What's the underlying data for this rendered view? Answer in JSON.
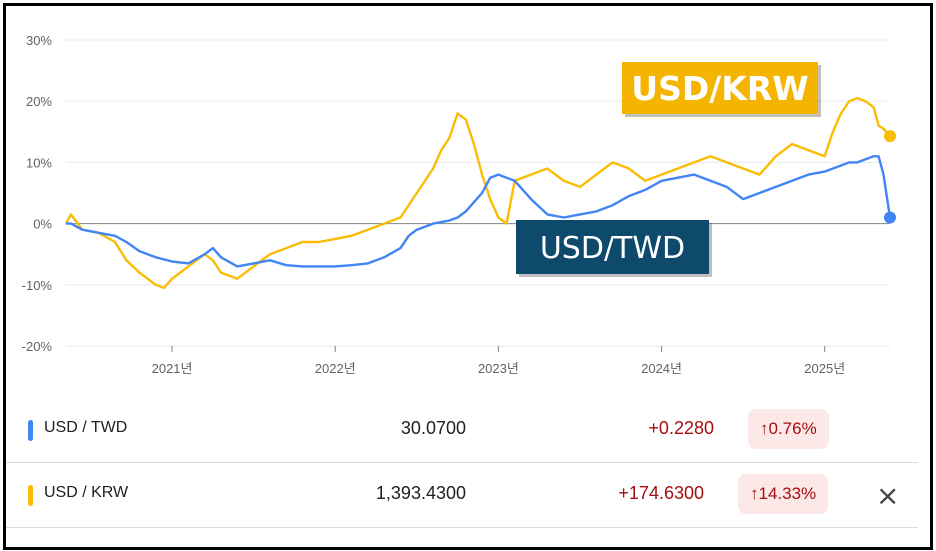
{
  "chart_data": {
    "type": "line",
    "y_ticks": [
      "30%",
      "20%",
      "10%",
      "0%",
      "-10%",
      "-20%"
    ],
    "ylim": [
      -20,
      30
    ],
    "x_ticks": [
      "2021년",
      "2022년",
      "2023년",
      "2024년",
      "2025년"
    ],
    "x_tick_years": [
      2021,
      2022,
      2023,
      2024,
      2025
    ],
    "xlim": [
      2020.35,
      2025.4
    ],
    "zero_line": true,
    "series": [
      {
        "name": "USD/TWD",
        "color": "#4285f4",
        "x": [
          2020.35,
          2020.38,
          2020.45,
          2020.55,
          2020.65,
          2020.72,
          2020.8,
          2020.9,
          2021.0,
          2021.1,
          2021.2,
          2021.25,
          2021.3,
          2021.4,
          2021.5,
          2021.6,
          2021.7,
          2021.8,
          2021.9,
          2022.0,
          2022.1,
          2022.2,
          2022.3,
          2022.4,
          2022.45,
          2022.5,
          2022.55,
          2022.6,
          2022.7,
          2022.75,
          2022.8,
          2022.85,
          2022.9,
          2022.95,
          2023.0,
          2023.05,
          2023.1,
          2023.2,
          2023.3,
          2023.4,
          2023.5,
          2023.6,
          2023.7,
          2023.8,
          2023.9,
          2024.0,
          2024.1,
          2024.2,
          2024.3,
          2024.4,
          2024.5,
          2024.6,
          2024.7,
          2024.8,
          2024.9,
          2025.0,
          2025.05,
          2025.1,
          2025.15,
          2025.2,
          2025.25,
          2025.3,
          2025.33,
          2025.36,
          2025.4
        ],
        "y": [
          0,
          0,
          -1,
          -1.5,
          -2,
          -3,
          -4.5,
          -5.5,
          -6.2,
          -6.5,
          -5,
          -4,
          -5.5,
          -7,
          -6.5,
          -6,
          -6.8,
          -7,
          -7,
          -7,
          -6.8,
          -6.5,
          -5.5,
          -4,
          -2,
          -1,
          -0.5,
          0,
          0.5,
          1,
          2,
          3.5,
          5,
          7.5,
          8,
          7.5,
          7,
          4,
          1.5,
          1,
          1.5,
          2,
          3,
          4.5,
          5.5,
          7,
          7.5,
          8,
          7,
          6,
          4,
          5,
          6,
          7,
          8,
          8.5,
          9,
          9.5,
          10,
          10,
          10.5,
          11,
          11,
          8,
          1
        ]
      },
      {
        "name": "USD/KRW",
        "color": "#fbbc04",
        "x": [
          2020.35,
          2020.38,
          2020.45,
          2020.55,
          2020.65,
          2020.72,
          2020.8,
          2020.85,
          2020.9,
          2020.95,
          2021.0,
          2021.1,
          2021.2,
          2021.25,
          2021.3,
          2021.4,
          2021.5,
          2021.6,
          2021.7,
          2021.8,
          2021.9,
          2022.0,
          2022.1,
          2022.2,
          2022.3,
          2022.4,
          2022.45,
          2022.5,
          2022.55,
          2022.6,
          2022.65,
          2022.7,
          2022.75,
          2022.8,
          2022.85,
          2022.9,
          2022.95,
          2023.0,
          2023.05,
          2023.1,
          2023.2,
          2023.3,
          2023.4,
          2023.5,
          2023.6,
          2023.7,
          2023.8,
          2023.9,
          2024.0,
          2024.1,
          2024.2,
          2024.3,
          2024.4,
          2024.5,
          2024.6,
          2024.7,
          2024.8,
          2024.9,
          2025.0,
          2025.05,
          2025.1,
          2025.15,
          2025.2,
          2025.25,
          2025.3,
          2025.33,
          2025.36,
          2025.4
        ],
        "y": [
          0,
          1.5,
          -1,
          -1.5,
          -3,
          -6,
          -8,
          -9,
          -10,
          -10.5,
          -9,
          -7,
          -5,
          -6,
          -8,
          -9,
          -7,
          -5,
          -4,
          -3,
          -3,
          -2.5,
          -2,
          -1,
          0,
          1,
          3,
          5,
          7,
          9,
          12,
          14,
          18,
          17,
          13,
          8,
          4,
          1,
          0,
          7,
          8,
          9,
          7,
          6,
          8,
          10,
          9,
          7,
          8,
          9,
          10,
          11,
          10,
          9,
          8,
          11,
          13,
          12,
          11,
          15,
          18,
          20,
          20.5,
          20,
          19,
          16,
          15.5,
          14.3
        ]
      }
    ],
    "annotations": [
      {
        "text": "USD/KRW",
        "bg": "#f5b400",
        "color": "#ffffff"
      },
      {
        "text": "USD/TWD",
        "bg": "#0d4a6b",
        "color": "#ffffff"
      }
    ]
  },
  "table": {
    "rows": [
      {
        "name": "USD / TWD",
        "color": "#4285f4",
        "price": "30.0700",
        "change": "+0.2280",
        "change_pct": "0.76%",
        "arrow": "↑"
      },
      {
        "name": "USD / KRW",
        "color": "#fbbc04",
        "price": "1,393.4300",
        "change": "+174.6300",
        "change_pct": "14.33%",
        "arrow": "↑"
      }
    ],
    "close_icon": "×"
  }
}
